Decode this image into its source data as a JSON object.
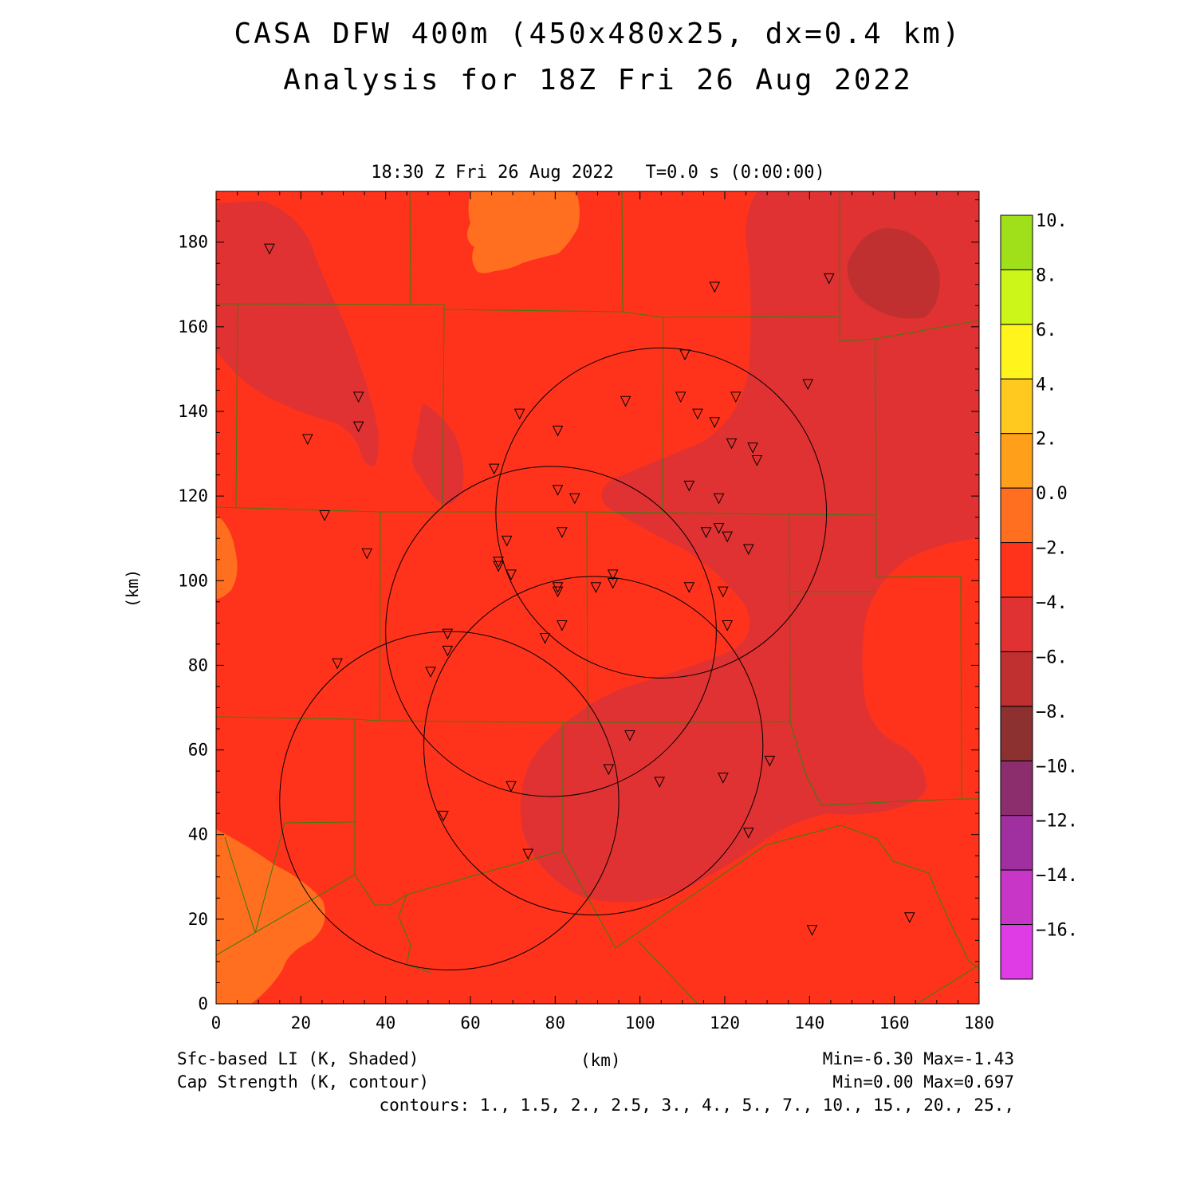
{
  "title": {
    "line1": "CASA DFW 400m (450x480x25, dx=0.4 km)",
    "line2": "Analysis for 18Z Fri 26 Aug 2022"
  },
  "subtitle": "18:30 Z Fri 26 Aug 2022   T=0.0 s (0:00:00)",
  "axes": {
    "x_label": "(km)",
    "y_label": "(km)",
    "x_ticks": [
      "0",
      "20",
      "40",
      "60",
      "80",
      "100",
      "120",
      "140",
      "160",
      "180"
    ],
    "y_ticks": [
      "0",
      "20",
      "40",
      "60",
      "80",
      "100",
      "120",
      "140",
      "160",
      "180"
    ],
    "x_range": [
      0,
      180
    ],
    "y_range": [
      0,
      192
    ]
  },
  "colorbar": {
    "labels": [
      "10.",
      "8.",
      "6.",
      "4.",
      "2.",
      "0.0",
      "−2.",
      "−4.",
      "−6.",
      "−8.",
      "−10.",
      "−12.",
      "−14.",
      "−16."
    ],
    "colors": [
      "#9fe01a",
      "#ccf51a",
      "#fff51c",
      "#ffc91f",
      "#ff9f1a",
      "#ff6f1f",
      "#ff331c",
      "#e03232",
      "#c03030",
      "#8c3030",
      "#8c2e6e",
      "#a030a0",
      "#c836c8",
      "#e03ce6"
    ]
  },
  "fields": {
    "shaded_label": "Sfc-based LI (K, Shaded)",
    "shaded_minmax": "Min=-6.30 Max=-1.43",
    "contour_label": "Cap Strength (K, contour)",
    "contour_minmax": "Min=0.00 Max=0.697",
    "contours": "contours: 1., 1.5, 2., 2.5, 3., 4., 5., 7., 10., 15., 20., 25.,"
  },
  "radars": [
    {
      "name": "radar-ring-1",
      "cx": 105,
      "cy": 116,
      "r": 39
    },
    {
      "name": "radar-ring-2",
      "cx": 79,
      "cy": 88,
      "r": 39
    },
    {
      "name": "radar-ring-3",
      "cx": 89,
      "cy": 61,
      "r": 40
    },
    {
      "name": "radar-ring-4",
      "cx": 55,
      "cy": 48,
      "r": 40
    }
  ],
  "stations": [
    [
      12.6,
      178.4
    ],
    [
      117.6,
      169.4
    ],
    [
      144.6,
      171.4
    ],
    [
      110.6,
      153.4
    ],
    [
      33.6,
      143.4
    ],
    [
      96.6,
      142.4
    ],
    [
      109.6,
      143.4
    ],
    [
      122.6,
      143.4
    ],
    [
      139.6,
      146.4
    ],
    [
      71.6,
      139.4
    ],
    [
      113.6,
      139.4
    ],
    [
      117.6,
      137.4
    ],
    [
      33.6,
      136.4
    ],
    [
      80.6,
      135.4
    ],
    [
      21.6,
      133.4
    ],
    [
      121.6,
      132.4
    ],
    [
      126.6,
      131.4
    ],
    [
      127.6,
      128.4
    ],
    [
      65.6,
      126.4
    ],
    [
      80.6,
      121.4
    ],
    [
      111.6,
      122.4
    ],
    [
      84.6,
      119.4
    ],
    [
      118.6,
      119.4
    ],
    [
      25.6,
      115.4
    ],
    [
      115.6,
      111.4
    ],
    [
      118.6,
      112.4
    ],
    [
      81.6,
      111.4
    ],
    [
      120.6,
      110.4
    ],
    [
      68.6,
      109.4
    ],
    [
      125.6,
      107.4
    ],
    [
      35.6,
      106.4
    ],
    [
      66.6,
      104.4
    ],
    [
      66.6,
      103.4
    ],
    [
      69.6,
      101.4
    ],
    [
      93.6,
      101.4
    ],
    [
      93.6,
      99.4
    ],
    [
      89.6,
      98.4
    ],
    [
      80.6,
      98.4
    ],
    [
      80.6,
      97.4
    ],
    [
      111.6,
      98.4
    ],
    [
      119.6,
      97.4
    ],
    [
      81.6,
      89.4
    ],
    [
      120.6,
      89.4
    ],
    [
      54.6,
      87.4
    ],
    [
      77.6,
      86.4
    ],
    [
      54.6,
      83.4
    ],
    [
      28.6,
      80.4
    ],
    [
      50.6,
      78.4
    ],
    [
      97.6,
      63.4
    ],
    [
      130.6,
      57.4
    ],
    [
      92.6,
      55.4
    ],
    [
      119.6,
      53.4
    ],
    [
      104.6,
      52.4
    ],
    [
      69.6,
      51.4
    ],
    [
      53.6,
      44.4
    ],
    [
      125.6,
      40.4
    ],
    [
      73.6,
      35.4
    ],
    [
      163.6,
      20.4
    ],
    [
      140.6,
      17.4
    ]
  ]
}
